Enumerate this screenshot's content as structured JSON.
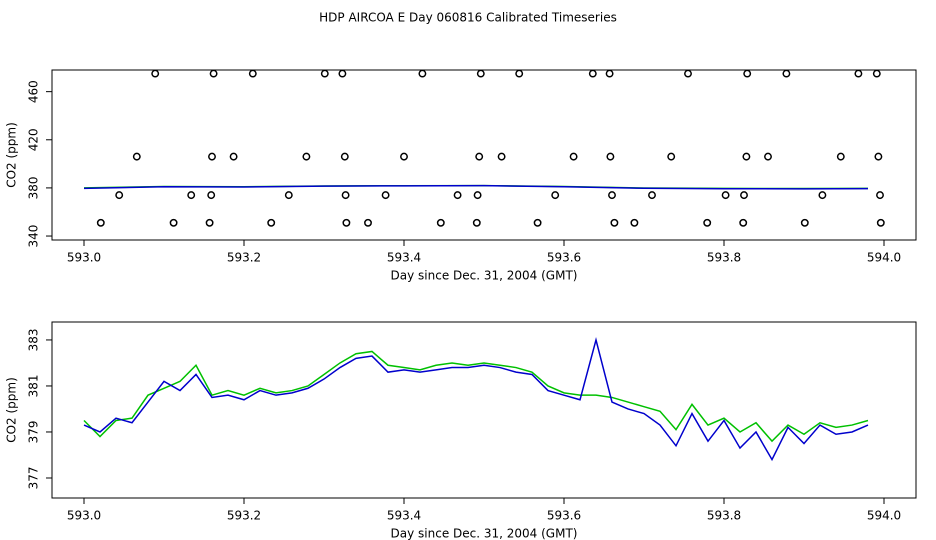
{
  "title": "HDP AIRCOA E  Day 060816  Calibrated Timeseries",
  "chart_data": [
    {
      "type": "line",
      "xlabel": "Day since Dec. 31, 2004 (GMT)",
      "ylabel": "CO2 (ppm)",
      "xlim": [
        592.96,
        594.04
      ],
      "ylim": [
        336.7,
        478
      ],
      "xticks": [
        {
          "value": 593,
          "label": "593.0"
        },
        {
          "value": 593.2,
          "label": "593.2"
        },
        {
          "value": 593.4,
          "label": "593.4"
        },
        {
          "value": 593.6,
          "label": "593.6"
        },
        {
          "value": 593.8,
          "label": "593.8"
        },
        {
          "value": 594,
          "label": "594.0"
        }
      ],
      "yticks": [
        340,
        380,
        420,
        460
      ],
      "x": [
        593,
        593.1,
        593.2,
        593.3,
        593.4,
        593.5,
        593.6,
        593.7,
        593.8,
        593.9,
        593.98
      ],
      "series": [
        {
          "color": "#00c000",
          "values": [
            380.0,
            381.2,
            381.0,
            381.6,
            381.8,
            381.9,
            381.2,
            379.9,
            379.6,
            379.5,
            379.6
          ]
        },
        {
          "color": "#0000cc",
          "values": [
            379.6,
            381.0,
            380.8,
            381.5,
            381.7,
            381.9,
            381.0,
            379.7,
            379.3,
            379.2,
            379.4
          ]
        }
      ],
      "markers": {
        "color": "#000000",
        "x": [
          593.089,
          593.162,
          593.211,
          593.301,
          593.323,
          593.423,
          593.496,
          593.544,
          593.636,
          593.657,
          593.755,
          593.829,
          593.878,
          593.968,
          593.991,
          593.066,
          593.16,
          593.187,
          593.278,
          593.326,
          593.4,
          593.494,
          593.522,
          593.612,
          593.658,
          593.734,
          593.828,
          593.855,
          593.946,
          593.993,
          593.044,
          593.134,
          593.159,
          593.256,
          593.327,
          593.377,
          593.467,
          593.492,
          593.589,
          593.66,
          593.71,
          593.802,
          593.825,
          593.923,
          593.995,
          593.021,
          593.112,
          593.157,
          593.234,
          593.328,
          593.355,
          593.446,
          593.491,
          593.567,
          593.663,
          593.688,
          593.779,
          593.824,
          593.901,
          593.996
        ],
        "values": [
          475,
          475,
          475,
          475,
          475,
          475,
          475,
          475,
          475,
          475,
          475,
          475,
          475,
          475,
          475,
          406,
          406,
          406,
          406,
          406,
          406,
          406,
          406,
          406,
          406,
          406,
          406,
          406,
          406,
          406,
          374,
          374,
          374,
          374,
          374,
          374,
          374,
          374,
          374,
          374,
          374,
          374,
          374,
          374,
          374,
          351,
          351,
          351,
          351,
          351,
          351,
          351,
          351,
          351,
          351,
          351,
          351,
          351,
          351,
          351
        ]
      }
    },
    {
      "type": "line",
      "xlabel": "Day since Dec. 31, 2004 (GMT)",
      "ylabel": "CO2 (ppm)",
      "xlim": [
        592.96,
        594.04
      ],
      "ylim": [
        376.13,
        383.78
      ],
      "xticks": [
        {
          "value": 593,
          "label": "593.0"
        },
        {
          "value": 593.2,
          "label": "593.2"
        },
        {
          "value": 593.4,
          "label": "593.4"
        },
        {
          "value": 593.6,
          "label": "593.6"
        },
        {
          "value": 593.8,
          "label": "593.8"
        },
        {
          "value": 594,
          "label": "594.0"
        }
      ],
      "yticks": [
        377,
        379,
        381,
        383
      ],
      "x": [
        593,
        593.02,
        593.04,
        593.06,
        593.08,
        593.1,
        593.12,
        593.14,
        593.16,
        593.18,
        593.2,
        593.22,
        593.24,
        593.26,
        593.28,
        593.3,
        593.32,
        593.34,
        593.36,
        593.38,
        593.4,
        593.42,
        593.44,
        593.46,
        593.48,
        593.5,
        593.52,
        593.54,
        593.56,
        593.58,
        593.6,
        593.62,
        593.64,
        593.66,
        593.68,
        593.7,
        593.72,
        593.74,
        593.76,
        593.78,
        593.8,
        593.82,
        593.84,
        593.86,
        593.88,
        593.9,
        593.92,
        593.94,
        593.96,
        593.98
      ],
      "series": [
        {
          "color": "#00c000",
          "values": [
            379.5,
            378.8,
            379.5,
            379.6,
            380.6,
            380.9,
            381.2,
            381.9,
            380.6,
            380.8,
            380.6,
            380.9,
            380.7,
            380.8,
            381.0,
            381.5,
            382.0,
            382.4,
            382.5,
            381.9,
            381.8,
            381.7,
            381.9,
            382.0,
            381.9,
            382.0,
            381.9,
            381.8,
            381.6,
            381.0,
            380.7,
            380.6,
            380.6,
            380.5,
            380.3,
            380.1,
            379.9,
            379.1,
            380.2,
            379.3,
            379.6,
            379.0,
            379.4,
            378.6,
            379.3,
            378.9,
            379.4,
            379.2,
            379.3,
            379.5
          ]
        },
        {
          "color": "#0000cc",
          "values": [
            379.3,
            379.0,
            379.6,
            379.4,
            380.3,
            381.2,
            380.8,
            381.5,
            380.5,
            380.6,
            380.4,
            380.8,
            380.6,
            380.7,
            380.9,
            381.3,
            381.8,
            382.2,
            382.3,
            381.6,
            381.7,
            381.6,
            381.7,
            381.8,
            381.8,
            381.9,
            381.8,
            381.6,
            381.5,
            380.8,
            380.6,
            380.4,
            383.0,
            380.3,
            380.0,
            379.8,
            379.3,
            378.4,
            379.8,
            378.6,
            379.5,
            378.3,
            379.0,
            377.8,
            379.2,
            378.5,
            379.3,
            378.9,
            379.0,
            379.3
          ]
        }
      ]
    }
  ]
}
